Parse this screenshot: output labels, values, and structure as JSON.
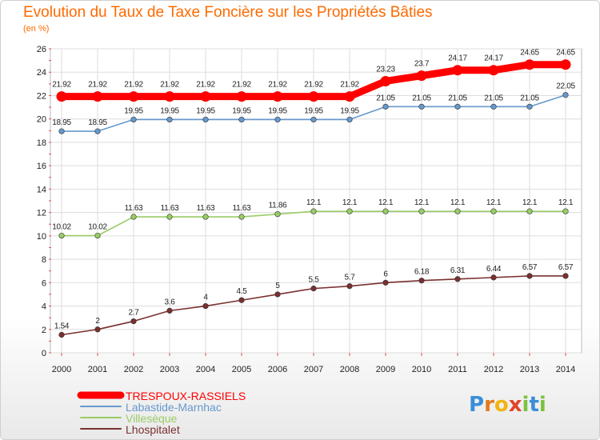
{
  "title": "Evolution du Taux de Taxe Foncière sur les Propriétés Bâties",
  "unit_label": "(en %)",
  "logo": {
    "letters": [
      "P",
      "r",
      "o",
      "x",
      "i",
      "t",
      "i"
    ],
    "colors": [
      "#3a8ed8",
      "#e37a1a",
      "#f2b40f",
      "#e0452b",
      "#7cc242",
      "#3a8ed8",
      "#7cc242"
    ]
  },
  "chart_data": {
    "type": "line",
    "x": [
      "2000",
      "2001",
      "2002",
      "2003",
      "2004",
      "2005",
      "2006",
      "2007",
      "2008",
      "2009",
      "2010",
      "2011",
      "2012",
      "2013",
      "2014"
    ],
    "ylim": [
      0,
      26
    ],
    "yticks": [
      "0",
      "2",
      "4",
      "6",
      "8",
      "10",
      "12",
      "14",
      "16",
      "18",
      "20",
      "22",
      "24",
      "26"
    ],
    "grid": true,
    "legend_position": "bottom-left",
    "series": [
      {
        "name": "TRESPOUX-RASSIELS",
        "color": "#ff0000",
        "values": [
          21.92,
          21.92,
          21.92,
          21.92,
          21.92,
          21.92,
          21.92,
          21.92,
          21.92,
          23.23,
          23.7,
          24.17,
          24.17,
          24.65,
          24.65
        ],
        "labels": [
          "21.92",
          "21.92",
          "21.92",
          "21.92",
          "21.92",
          "21.92",
          "21.92",
          "21.92",
          "21.92",
          "23.23",
          "23.7",
          "24.17",
          "24.17",
          "24.65",
          "24.65"
        ]
      },
      {
        "name": "Labastide-Marnhac",
        "color": "#6699cc",
        "values": [
          18.95,
          18.95,
          19.95,
          19.95,
          19.95,
          19.95,
          19.95,
          19.95,
          19.95,
          21.05,
          21.05,
          21.05,
          21.05,
          21.05,
          22.05
        ],
        "labels": [
          "18.95",
          "18.95",
          "19.95",
          "19.95",
          "19.95",
          "19.95",
          "19.95",
          "19.95",
          "19.95",
          "21.05",
          "21.05",
          "21.05",
          "21.05",
          "21.05",
          "22.05"
        ]
      },
      {
        "name": "Villesèque",
        "color": "#99cc66",
        "values": [
          10.02,
          10.02,
          11.63,
          11.63,
          11.63,
          11.63,
          11.86,
          12.1,
          12.1,
          12.1,
          12.1,
          12.1,
          12.1,
          12.1,
          12.1
        ],
        "labels": [
          "10.02",
          "10.02",
          "11.63",
          "11.63",
          "11.63",
          "11.63",
          "11.86",
          "12.1",
          "12.1",
          "12.1",
          "12.1",
          "12.1",
          "12.1",
          "12.1",
          "12.1"
        ]
      },
      {
        "name": "Lhospitalet",
        "color": "#7a3030",
        "values": [
          1.54,
          2,
          2.7,
          3.6,
          4,
          4.5,
          5,
          5.5,
          5.7,
          6,
          6.18,
          6.31,
          6.44,
          6.57,
          6.57
        ],
        "labels": [
          "1.54",
          "2",
          "2.7",
          "3.6",
          "4",
          "4.5",
          "5",
          "5.5",
          "5.7",
          "6",
          "6.18",
          "6.31",
          "6.44",
          "6.57",
          "6.57"
        ]
      }
    ]
  }
}
